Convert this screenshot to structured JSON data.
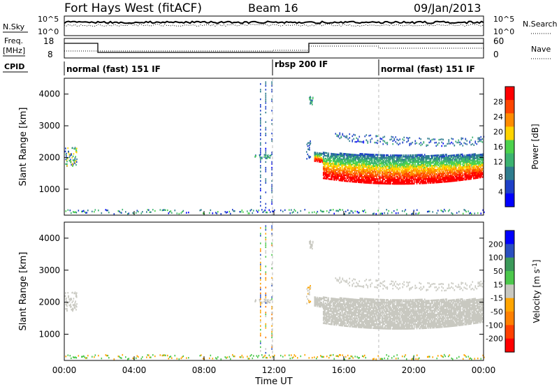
{
  "header": {
    "title": "Fort Hays West (fitACF)",
    "beam": "Beam 16",
    "date": "09/Jan/2013"
  },
  "sky_panel": {
    "left_label": "N.Sky",
    "right_label": "N.Search",
    "left_ticks": [
      "10^5",
      "10^0"
    ],
    "right_ticks": [
      "10^5",
      "10^0"
    ]
  },
  "freq_panel": {
    "left_label_1": "Freq.",
    "left_label_2": "[MHz]",
    "right_label": "Nave",
    "left_ticks": [
      "18",
      "8"
    ],
    "right_ticks": [
      "60",
      "0"
    ]
  },
  "cpid": {
    "label": "CPID",
    "segments": [
      {
        "label": "normal (fast) 151 IF",
        "start_hour": 0
      },
      {
        "label": "rbsp 200 IF",
        "start_hour": 12
      },
      {
        "label": "normal (fast) 151 IF",
        "start_hour": 18
      }
    ]
  },
  "x_axis": {
    "label": "Time UT",
    "ticks": [
      "00:00",
      "04:00",
      "08:00",
      "12:00",
      "16:00",
      "20:00",
      "00:00"
    ]
  },
  "colors": {
    "power_scale": [
      "#0000ff",
      "#1e40c8",
      "#2f7d8f",
      "#3cb371",
      "#4cd24c",
      "#ffd400",
      "#ff8c00",
      "#ff4500",
      "#ff0000"
    ],
    "velocity_scale": [
      "#0000ff",
      "#2a4fc0",
      "#3c9a5a",
      "#4cc84c",
      "#c8c8c0",
      "#ffa500",
      "#ff8000",
      "#ff4000",
      "#ff0000"
    ]
  },
  "chart_data": [
    {
      "type": "heatmap",
      "title": "Power",
      "ylabel": "Slant Range [km]",
      "xlabel": "Time UT",
      "x_range_hours": [
        0,
        24
      ],
      "ylim": [
        180,
        4500
      ],
      "y_ticks": [
        1000,
        2000,
        3000,
        4000
      ],
      "colorbar": {
        "label": "Power [dB]",
        "ticks": [
          "28",
          "24",
          "20",
          "16",
          "12",
          "8",
          "4"
        ],
        "range": [
          0,
          30
        ]
      },
      "features": [
        {
          "name": "near-range ground scatter",
          "hours": [
            0,
            24
          ],
          "range_km": [
            200,
            350
          ]
        },
        {
          "name": "early echo",
          "hours": [
            0,
            0.7
          ],
          "range_km": [
            1700,
            2300
          ]
        },
        {
          "name": "band near noon",
          "hours": [
            10.8,
            11.8
          ],
          "range_km": [
            1900,
            2100
          ]
        },
        {
          "name": "main afternoon band",
          "hours": [
            14.3,
            24
          ],
          "range_km": [
            1100,
            2200
          ]
        },
        {
          "name": "upper band",
          "hours": [
            15.5,
            24
          ],
          "range_km": [
            2300,
            3000
          ]
        }
      ]
    },
    {
      "type": "heatmap",
      "title": "Velocity",
      "ylabel": "Slant Range [km]",
      "xlabel": "Time UT",
      "x_range_hours": [
        0,
        24
      ],
      "ylim": [
        180,
        4500
      ],
      "y_ticks": [
        1000,
        2000,
        3000,
        4000
      ],
      "colorbar": {
        "label": "Velocity [m s-1]",
        "ticks": [
          "200",
          "100",
          "50",
          "15",
          "-15",
          "-50",
          "-100",
          "-200"
        ],
        "range": [
          -250,
          250
        ]
      }
    }
  ]
}
